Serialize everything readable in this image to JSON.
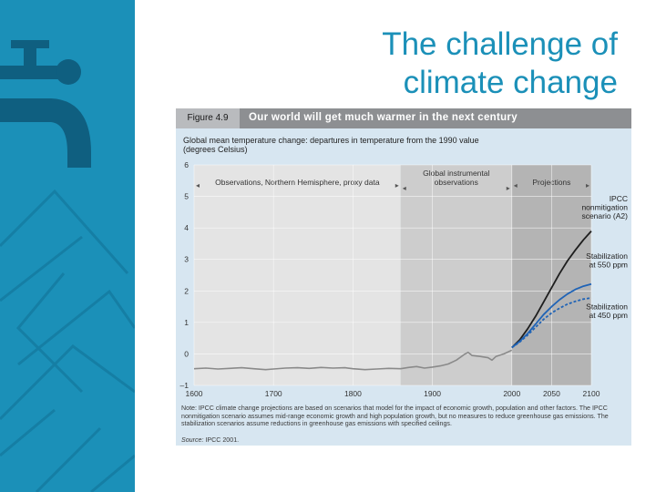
{
  "slide": {
    "title_line1": "The challenge of",
    "title_line2": "climate change",
    "brand_color": "#1b90b8"
  },
  "figure": {
    "number": "Figure 4.9",
    "headline": "Our world will get much warmer in the next century",
    "note": "Note: IPCC climate change projections are based on scenarios that model for the impact of economic growth, population and other factors. The IPCC nonmitigation scenario assumes mid-range economic growth and high population growth, but no measures to reduce greenhouse gas emissions. The stabilization scenarios assume reductions in greenhouse gas emissions with specified ceilings.",
    "source_label": "Source:",
    "source_value": "IPCC 2001."
  },
  "chart_data": {
    "type": "line",
    "title": "Global mean temperature change: departures in temperature from the 1990 value",
    "subtitle": "(degrees Celsius)",
    "xlim": [
      1600,
      2100
    ],
    "ylim": [
      -1,
      6
    ],
    "x_ticks": [
      {
        "value": 1600,
        "label": "1600"
      },
      {
        "value": 1700,
        "label": "1700"
      },
      {
        "value": 1800,
        "label": "1800"
      },
      {
        "value": 1900,
        "label": "1900"
      },
      {
        "value": 2000,
        "label": "2000"
      },
      {
        "value": 2050,
        "label": "2050"
      },
      {
        "value": 2100,
        "label": "2100"
      }
    ],
    "y_ticks": [
      {
        "value": 6,
        "label": "6"
      },
      {
        "value": 5,
        "label": "5"
      },
      {
        "value": 4,
        "label": "4"
      },
      {
        "value": 3,
        "label": "3"
      },
      {
        "value": 2,
        "label": "2"
      },
      {
        "value": 1,
        "label": "1"
      },
      {
        "value": 0,
        "label": "0"
      },
      {
        "value": -1,
        "label": "–1"
      }
    ],
    "regions": [
      {
        "label": "Observations, Northern Hemisphere, proxy data",
        "x_start": 1600,
        "x_end": 1860,
        "color": "#e4e4e4"
      },
      {
        "label": "Global instrumental observations",
        "x_start": 1860,
        "x_end": 2000,
        "color": "#cdcdcd"
      },
      {
        "label": "Projections",
        "x_start": 2000,
        "x_end": 2100,
        "color": "#b4b4b4"
      }
    ],
    "series": [
      {
        "name": "Observations",
        "color": "#8a8a8a",
        "style": "solid",
        "points": [
          [
            1600,
            -0.47
          ],
          [
            1615,
            -0.45
          ],
          [
            1630,
            -0.48
          ],
          [
            1645,
            -0.46
          ],
          [
            1660,
            -0.44
          ],
          [
            1675,
            -0.47
          ],
          [
            1690,
            -0.5
          ],
          [
            1700,
            -0.48
          ],
          [
            1715,
            -0.45
          ],
          [
            1730,
            -0.44
          ],
          [
            1745,
            -0.46
          ],
          [
            1760,
            -0.43
          ],
          [
            1775,
            -0.45
          ],
          [
            1790,
            -0.44
          ],
          [
            1800,
            -0.47
          ],
          [
            1815,
            -0.5
          ],
          [
            1830,
            -0.48
          ],
          [
            1845,
            -0.46
          ],
          [
            1860,
            -0.47
          ],
          [
            1870,
            -0.43
          ],
          [
            1880,
            -0.4
          ],
          [
            1890,
            -0.45
          ],
          [
            1900,
            -0.42
          ],
          [
            1910,
            -0.38
          ],
          [
            1920,
            -0.32
          ],
          [
            1930,
            -0.2
          ],
          [
            1940,
            -0.02
          ],
          [
            1945,
            0.05
          ],
          [
            1950,
            -0.05
          ],
          [
            1960,
            -0.08
          ],
          [
            1970,
            -0.12
          ],
          [
            1975,
            -0.2
          ],
          [
            1980,
            -0.08
          ],
          [
            1990,
            0.0
          ],
          [
            2000,
            0.12
          ]
        ]
      },
      {
        "name": "IPCC nonmitigation scenario (A2)",
        "color": "#1e1e1e",
        "style": "solid",
        "points": [
          [
            2000,
            0.2
          ],
          [
            2010,
            0.45
          ],
          [
            2020,
            0.8
          ],
          [
            2030,
            1.2
          ],
          [
            2040,
            1.65
          ],
          [
            2050,
            2.1
          ],
          [
            2060,
            2.55
          ],
          [
            2070,
            2.95
          ],
          [
            2080,
            3.3
          ],
          [
            2090,
            3.62
          ],
          [
            2100,
            3.9
          ]
        ]
      },
      {
        "name": "Stabilization at 550 ppm",
        "color": "#1f63b6",
        "style": "solid",
        "points": [
          [
            2000,
            0.2
          ],
          [
            2010,
            0.4
          ],
          [
            2020,
            0.65
          ],
          [
            2030,
            0.95
          ],
          [
            2040,
            1.25
          ],
          [
            2050,
            1.5
          ],
          [
            2060,
            1.72
          ],
          [
            2070,
            1.9
          ],
          [
            2080,
            2.05
          ],
          [
            2090,
            2.15
          ],
          [
            2100,
            2.22
          ]
        ]
      },
      {
        "name": "Stabilization at 450 ppm",
        "color": "#1f63b6",
        "style": "dashed",
        "points": [
          [
            2000,
            0.2
          ],
          [
            2010,
            0.38
          ],
          [
            2020,
            0.6
          ],
          [
            2030,
            0.85
          ],
          [
            2040,
            1.1
          ],
          [
            2050,
            1.3
          ],
          [
            2060,
            1.45
          ],
          [
            2070,
            1.58
          ],
          [
            2080,
            1.67
          ],
          [
            2090,
            1.74
          ],
          [
            2100,
            1.78
          ]
        ]
      }
    ],
    "annotations": [
      {
        "lines": [
          "IPCC",
          "nonmitigation",
          "scenario (A2)"
        ]
      },
      {
        "lines": [
          "Stabilization",
          "at 550 ppm"
        ]
      },
      {
        "lines": [
          "Stabilization",
          "at 450 ppm"
        ]
      }
    ],
    "grid": true
  }
}
